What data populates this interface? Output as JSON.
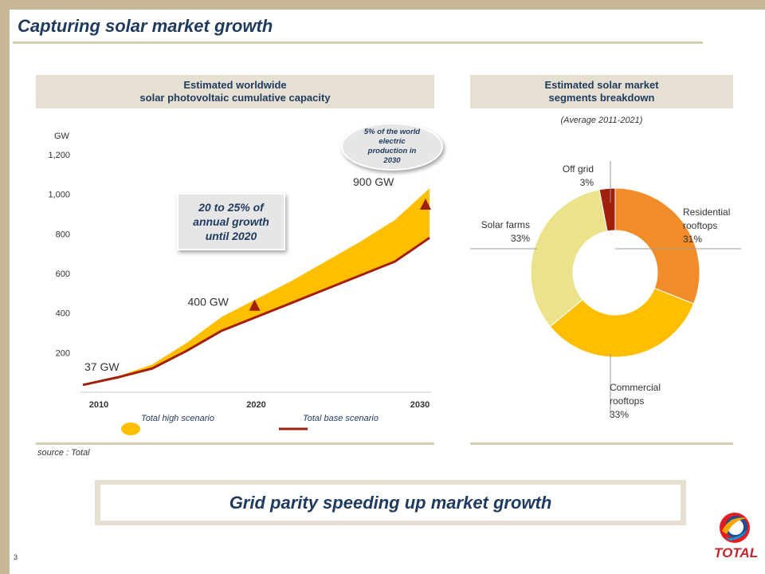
{
  "slide": {
    "title": "Capturing solar market growth",
    "page_number": "3",
    "source": "source : Total",
    "banner": "Grid parity speeding up market growth",
    "logo_text": "TOTAL"
  },
  "colors": {
    "high_scenario": "#ffbf00",
    "base_scenario": "#a0200d",
    "title": "#1f3a5f",
    "panel": "#e6e0d2"
  },
  "left_panel": {
    "header_line1": "Estimated worldwide",
    "header_line2": "solar photovoltaic cumulative capacity",
    "growth_callout_line1": "20 to 25% of",
    "growth_callout_line2": "annual growth",
    "growth_callout_line3": "until 2020",
    "share_callout_line1": "5% of the world",
    "share_callout_line2": "electric",
    "share_callout_line3": "production in",
    "share_callout_line4": "2030",
    "legend_high": "Total high scenario",
    "legend_base": "Total base scenario"
  },
  "right_panel": {
    "header_line1": "Estimated solar market",
    "header_line2": "segments breakdown",
    "subtitle": "(Average 2011-2021)"
  },
  "chart_data": [
    {
      "type": "area",
      "unit_label": "GW",
      "y_ticks": [
        "200",
        "400",
        "600",
        "800",
        "1,000",
        "1,200"
      ],
      "y_tick_values": [
        200,
        400,
        600,
        800,
        1000,
        1200
      ],
      "x_ticks": [
        "2010",
        "2020",
        "2030"
      ],
      "x_tick_values": [
        2010,
        2020,
        2030
      ],
      "xlim": [
        2010,
        2030
      ],
      "ylim": [
        0,
        1200
      ],
      "series": [
        {
          "name": "Total high scenario",
          "style": "area",
          "x": [
            2010,
            2012,
            2014,
            2016,
            2018,
            2020,
            2022,
            2024,
            2026,
            2028,
            2030
          ],
          "values": [
            37,
            80,
            140,
            250,
            380,
            470,
            560,
            660,
            760,
            870,
            1030
          ]
        },
        {
          "name": "Total base scenario",
          "style": "line",
          "x": [
            2010,
            2012,
            2014,
            2016,
            2018,
            2020,
            2022,
            2024,
            2026,
            2028,
            2030
          ],
          "values": [
            37,
            75,
            120,
            210,
            310,
            380,
            450,
            520,
            590,
            660,
            780
          ]
        }
      ],
      "annotations": [
        {
          "text": "37 GW",
          "x": 2010,
          "y": 37,
          "marker": false
        },
        {
          "text": "400 GW",
          "x": 2020,
          "y": 420,
          "marker": true
        },
        {
          "text": "900 GW",
          "x": 2030,
          "y": 930,
          "marker": true
        }
      ]
    },
    {
      "type": "pie",
      "style": "donut",
      "segments": [
        {
          "label_line1": "Residential",
          "label_line2": "rooftops",
          "label_line3": "31%",
          "value": 31,
          "color": "#f28c28"
        },
        {
          "label_line1": "Commercial",
          "label_line2": "rooftops",
          "label_line3": "33%",
          "value": 33,
          "color": "#ffbf00"
        },
        {
          "label_line1": "Solar farms",
          "label_line2": "33%",
          "value": 33,
          "color": "#ebe38c"
        },
        {
          "label_line1": "Off grid",
          "label_line2": "3%",
          "value": 3,
          "color": "#a0200d"
        }
      ]
    }
  ]
}
